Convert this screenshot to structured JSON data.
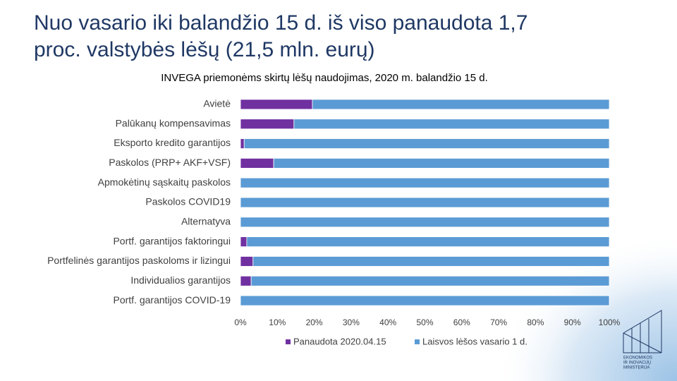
{
  "slide": {
    "title_lines": [
      "Nuo vasario iki balandžio 15 d. iš viso panaudota 1,7",
      "proc. valstybės lėšų (21,5 mln. eurų)"
    ],
    "logo_lines": [
      "EKONOMIKOS",
      "IR INOVACIJŲ",
      "MINISTERIJA"
    ]
  },
  "chart_data": {
    "type": "stacked_barh",
    "title": "INVEGA priemonėms skirtų lėšų naudojimas, 2020 m. balandžio 15 d.",
    "categories": [
      "Avietė",
      "Palūkanų kompensavimas",
      "Eksporto kredito garantijos",
      "Paskolos (PRP+ AKF+VSF)",
      "Apmokėtinų sąskaitų paskolos",
      "Paskolos COVID19",
      "Alternatyva",
      "Portf. garantijos faktoringui",
      "Portfelinės garantijos paskoloms ir lizingui",
      "Individualios garantijos",
      "Portf. garantijos COVID-19"
    ],
    "series": [
      {
        "name": "Panaudota 2020.04.15",
        "color": "#7030a0",
        "values": [
          19.5,
          14.5,
          1,
          9,
          0,
          0,
          0,
          1.7,
          3.4,
          2.9,
          0
        ]
      },
      {
        "name": "Laisvos lėšos vasario 1 d.",
        "color": "#5b9bd5",
        "values": [
          80.5,
          85.5,
          99,
          91,
          100,
          100,
          100,
          98.3,
          96.6,
          97.1,
          100
        ]
      }
    ],
    "xlim": [
      0,
      100
    ],
    "xticks": [
      {
        "value": 0,
        "label": "0%"
      },
      {
        "value": 10,
        "label": "10%"
      },
      {
        "value": 20,
        "label": "20%"
      },
      {
        "value": 30,
        "label": "30%"
      },
      {
        "value": 40,
        "label": "40%"
      },
      {
        "value": 50,
        "label": "50%"
      },
      {
        "value": 60,
        "label": "60%"
      },
      {
        "value": 70,
        "label": "70%"
      },
      {
        "value": 80,
        "label": "80%"
      },
      {
        "value": 90,
        "label": "90%"
      },
      {
        "value": 100,
        "label": "100%"
      }
    ],
    "legend": "bottom"
  }
}
